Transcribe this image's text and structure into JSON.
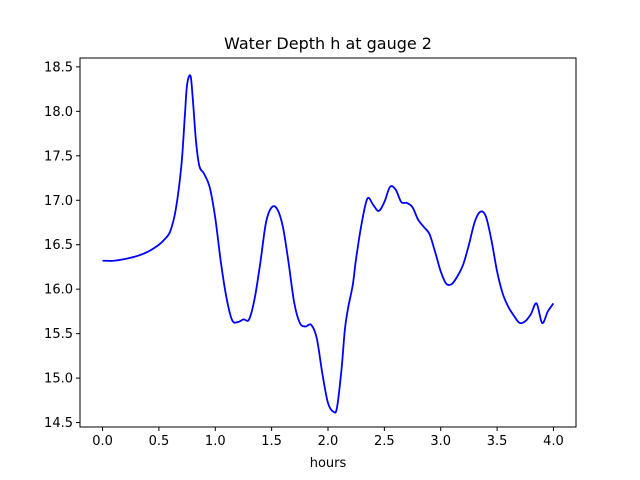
{
  "chart_data": {
    "type": "line",
    "title": "Water Depth h at gauge 2",
    "xlabel": "hours",
    "ylabel": "",
    "xlim": [
      -0.2,
      4.2
    ],
    "ylim": [
      14.45,
      18.6
    ],
    "xticks": [
      0.0,
      0.5,
      1.0,
      1.5,
      2.0,
      2.5,
      3.0,
      3.5,
      4.0
    ],
    "xtick_labels": [
      "0.0",
      "0.5",
      "1.0",
      "1.5",
      "2.0",
      "2.5",
      "3.0",
      "3.5",
      "4.0"
    ],
    "yticks": [
      14.5,
      15.0,
      15.5,
      16.0,
      16.5,
      17.0,
      17.5,
      18.0,
      18.5
    ],
    "ytick_labels": [
      "14.5",
      "15.0",
      "15.5",
      "16.0",
      "16.5",
      "17.0",
      "17.5",
      "18.0",
      "18.5"
    ],
    "grid": false,
    "series": [
      {
        "color": "#0000ff",
        "x": [
          0.0,
          0.1,
          0.2,
          0.3,
          0.4,
          0.5,
          0.55,
          0.6,
          0.65,
          0.7,
          0.73,
          0.75,
          0.78,
          0.8,
          0.83,
          0.86,
          0.9,
          0.95,
          1.0,
          1.05,
          1.1,
          1.15,
          1.2,
          1.25,
          1.3,
          1.35,
          1.4,
          1.45,
          1.5,
          1.55,
          1.6,
          1.65,
          1.7,
          1.75,
          1.8,
          1.85,
          1.9,
          1.95,
          2.0,
          2.05,
          2.08,
          2.12,
          2.15,
          2.18,
          2.22,
          2.25,
          2.3,
          2.35,
          2.4,
          2.45,
          2.5,
          2.55,
          2.6,
          2.65,
          2.7,
          2.75,
          2.8,
          2.85,
          2.9,
          2.95,
          3.0,
          3.05,
          3.1,
          3.15,
          3.2,
          3.25,
          3.3,
          3.35,
          3.4,
          3.45,
          3.5,
          3.55,
          3.6,
          3.65,
          3.7,
          3.75,
          3.8,
          3.85,
          3.9,
          3.95,
          4.0
        ],
        "y": [
          16.32,
          16.32,
          16.34,
          16.37,
          16.42,
          16.5,
          16.56,
          16.65,
          16.9,
          17.4,
          17.95,
          18.3,
          18.4,
          18.15,
          17.65,
          17.38,
          17.3,
          17.15,
          16.8,
          16.3,
          15.9,
          15.65,
          15.63,
          15.66,
          15.66,
          15.9,
          16.3,
          16.75,
          16.92,
          16.9,
          16.7,
          16.3,
          15.85,
          15.62,
          15.58,
          15.6,
          15.45,
          15.05,
          14.72,
          14.62,
          14.67,
          15.1,
          15.55,
          15.8,
          16.05,
          16.35,
          16.75,
          17.02,
          16.95,
          16.88,
          16.98,
          17.15,
          17.12,
          16.98,
          16.97,
          16.92,
          16.78,
          16.7,
          16.62,
          16.42,
          16.2,
          16.06,
          16.06,
          16.15,
          16.28,
          16.5,
          16.75,
          16.87,
          16.82,
          16.55,
          16.2,
          15.95,
          15.8,
          15.7,
          15.62,
          15.64,
          15.72,
          15.84,
          15.62,
          15.75,
          15.84
        ]
      }
    ]
  }
}
